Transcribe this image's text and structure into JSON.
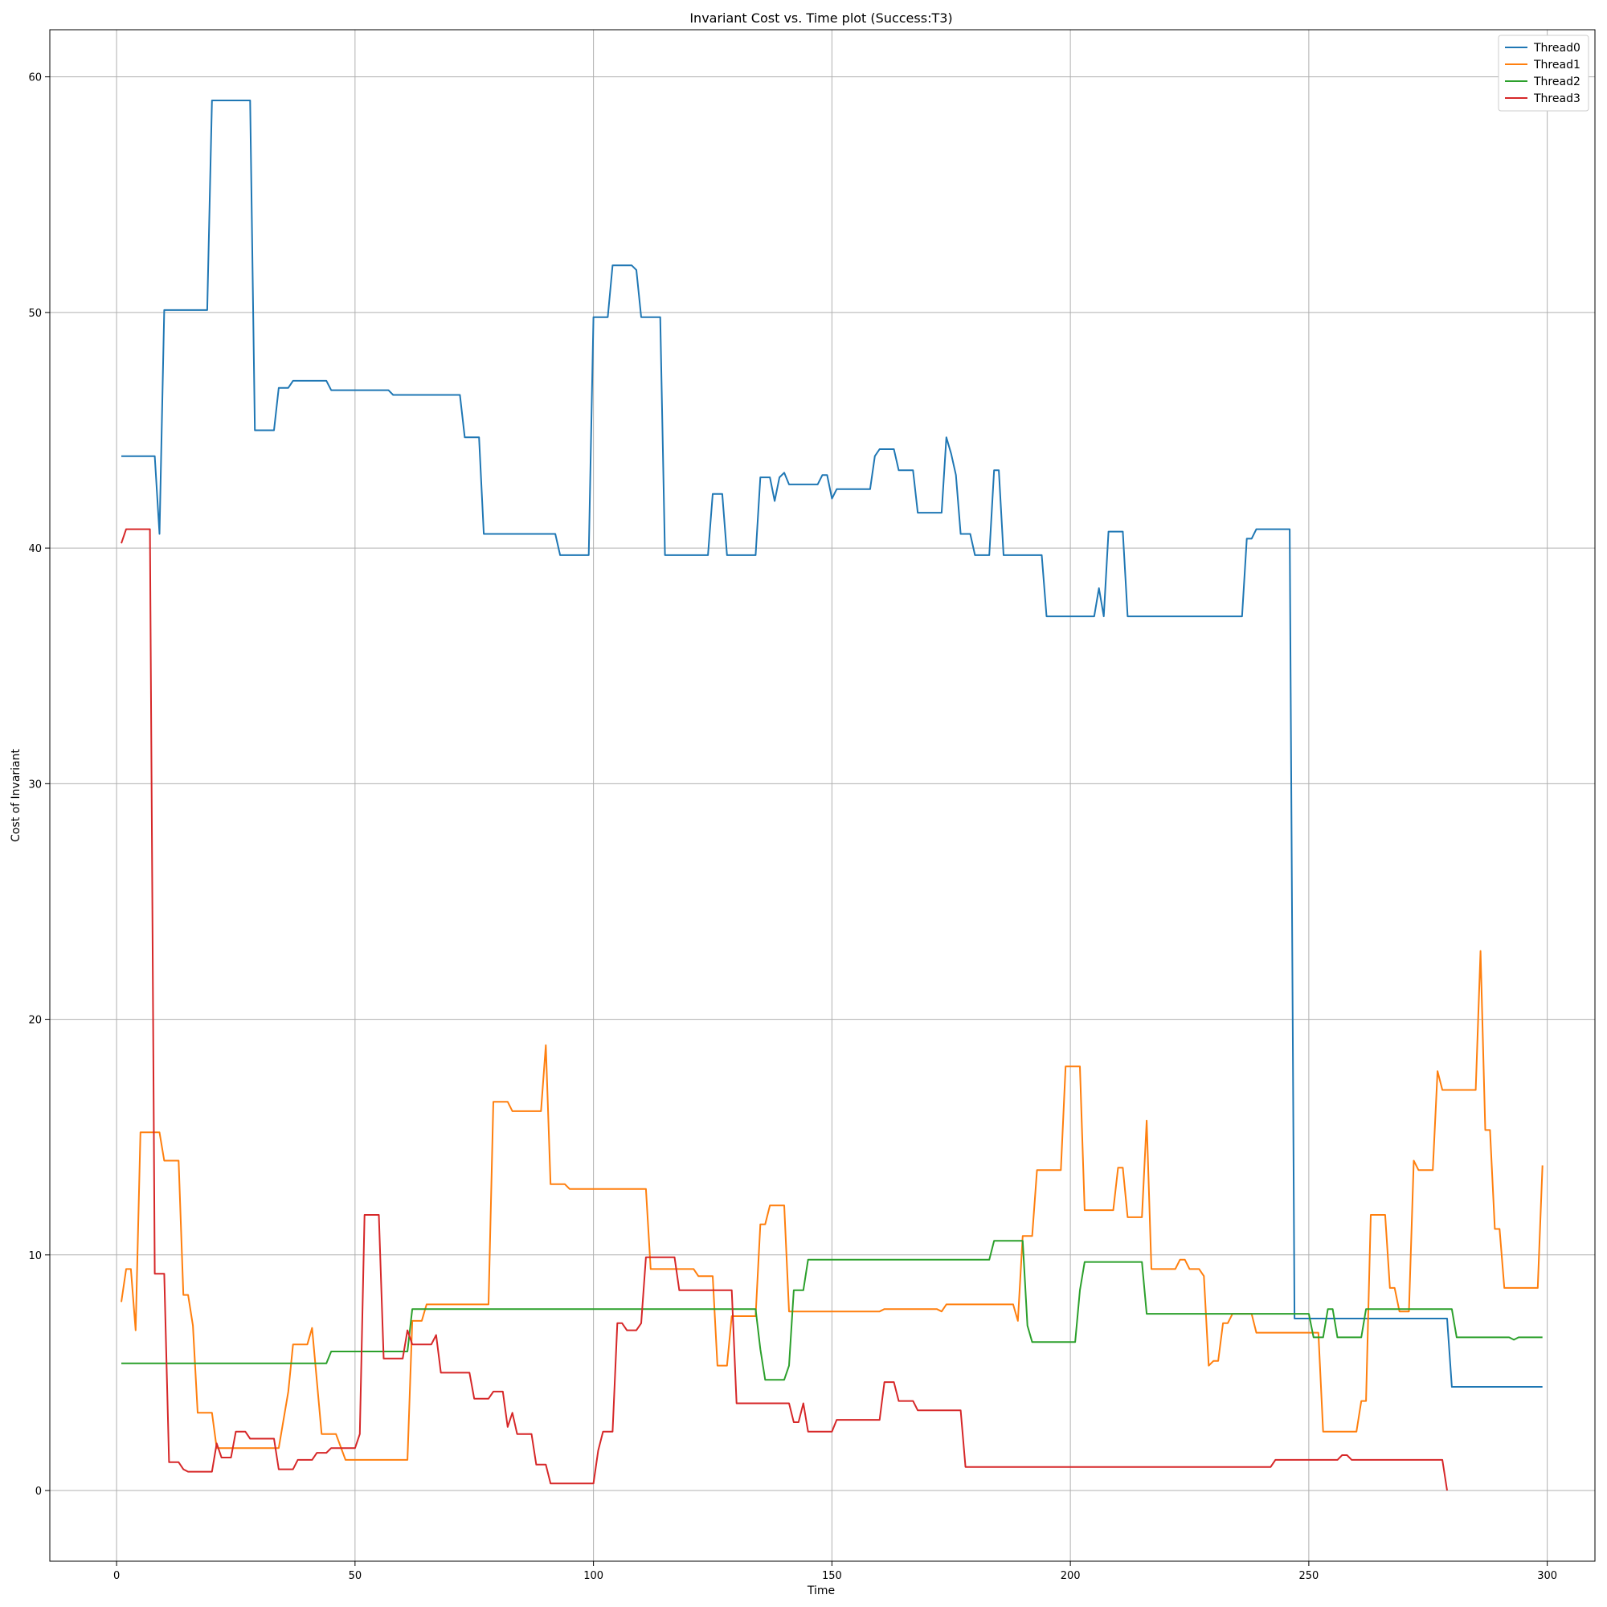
{
  "chart_data": {
    "type": "line",
    "title": "Invariant Cost vs. Time plot (Success:T3)",
    "xlabel": "Time",
    "ylabel": "Cost of Invariant",
    "xlim": [
      -14,
      310
    ],
    "ylim": [
      -3,
      62
    ],
    "xticks": [
      0,
      50,
      100,
      150,
      200,
      250,
      300
    ],
    "yticks": [
      0,
      10,
      20,
      30,
      40,
      50,
      60
    ],
    "grid": true,
    "legend_position": "top-right",
    "series": [
      {
        "name": "Thread0",
        "color": "#1f77b4",
        "points": [
          [
            1,
            43.9
          ],
          [
            8,
            43.9
          ],
          [
            9,
            40.6
          ],
          [
            10,
            50.1
          ],
          [
            19,
            50.1
          ],
          [
            20,
            59.0
          ],
          [
            28,
            59.0
          ],
          [
            29,
            45.0
          ],
          [
            33,
            45.0
          ],
          [
            34,
            46.8
          ],
          [
            36,
            46.8
          ],
          [
            37,
            47.1
          ],
          [
            44,
            47.1
          ],
          [
            45,
            46.7
          ],
          [
            57,
            46.7
          ],
          [
            58,
            46.5
          ],
          [
            72,
            46.5
          ],
          [
            73,
            44.7
          ],
          [
            76,
            44.7
          ],
          [
            77,
            40.6
          ],
          [
            92,
            40.6
          ],
          [
            93,
            39.7
          ],
          [
            99,
            39.7
          ],
          [
            100,
            49.8
          ],
          [
            103,
            49.8
          ],
          [
            104,
            52.0
          ],
          [
            108,
            52.0
          ],
          [
            109,
            51.8
          ],
          [
            110,
            49.8
          ],
          [
            114,
            49.8
          ],
          [
            115,
            39.7
          ],
          [
            124,
            39.7
          ],
          [
            125,
            42.3
          ],
          [
            127,
            42.3
          ],
          [
            128,
            39.7
          ],
          [
            134,
            39.7
          ],
          [
            135,
            43.0
          ],
          [
            137,
            43.0
          ],
          [
            138,
            42.0
          ],
          [
            139,
            43.0
          ],
          [
            140,
            43.2
          ],
          [
            141,
            42.7
          ],
          [
            147,
            42.7
          ],
          [
            148,
            43.1
          ],
          [
            149,
            43.1
          ],
          [
            150,
            42.1
          ],
          [
            151,
            42.5
          ],
          [
            158,
            42.5
          ],
          [
            159,
            43.9
          ],
          [
            160,
            44.2
          ],
          [
            163,
            44.2
          ],
          [
            164,
            43.3
          ],
          [
            167,
            43.3
          ],
          [
            168,
            41.5
          ],
          [
            173,
            41.5
          ],
          [
            174,
            44.7
          ],
          [
            175,
            44.0
          ],
          [
            176,
            43.1
          ],
          [
            177,
            40.6
          ],
          [
            179,
            40.6
          ],
          [
            180,
            39.7
          ],
          [
            183,
            39.7
          ],
          [
            184,
            43.3
          ],
          [
            185,
            43.3
          ],
          [
            186,
            39.7
          ],
          [
            194,
            39.7
          ],
          [
            195,
            37.1
          ],
          [
            205,
            37.1
          ],
          [
            206,
            38.3
          ],
          [
            207,
            37.1
          ],
          [
            208,
            40.7
          ],
          [
            211,
            40.7
          ],
          [
            212,
            37.1
          ],
          [
            236,
            37.1
          ],
          [
            237,
            40.4
          ],
          [
            238,
            40.4
          ],
          [
            239,
            40.8
          ],
          [
            246,
            40.8
          ],
          [
            247,
            7.3
          ],
          [
            279,
            7.3
          ],
          [
            280,
            4.4
          ],
          [
            299,
            4.4
          ]
        ]
      },
      {
        "name": "Thread1",
        "color": "#ff7f0e",
        "points": [
          [
            1,
            8.0
          ],
          [
            2,
            9.4
          ],
          [
            3,
            9.4
          ],
          [
            4,
            6.8
          ],
          [
            5,
            15.2
          ],
          [
            9,
            15.2
          ],
          [
            10,
            14.0
          ],
          [
            13,
            14.0
          ],
          [
            14,
            8.3
          ],
          [
            15,
            8.3
          ],
          [
            16,
            7.0
          ],
          [
            17,
            3.3
          ],
          [
            20,
            3.3
          ],
          [
            21,
            1.8
          ],
          [
            34,
            1.8
          ],
          [
            36,
            4.2
          ],
          [
            37,
            6.2
          ],
          [
            40,
            6.2
          ],
          [
            41,
            6.9
          ],
          [
            43,
            2.4
          ],
          [
            46,
            2.4
          ],
          [
            48,
            1.3
          ],
          [
            61,
            1.3
          ],
          [
            62,
            7.2
          ],
          [
            64,
            7.2
          ],
          [
            65,
            7.9
          ],
          [
            78,
            7.9
          ],
          [
            79,
            16.5
          ],
          [
            82,
            16.5
          ],
          [
            83,
            16.1
          ],
          [
            89,
            16.1
          ],
          [
            90,
            18.9
          ],
          [
            91,
            13.0
          ],
          [
            94,
            13.0
          ],
          [
            95,
            12.8
          ],
          [
            111,
            12.8
          ],
          [
            112,
            9.4
          ],
          [
            121,
            9.4
          ],
          [
            122,
            9.1
          ],
          [
            125,
            9.1
          ],
          [
            126,
            5.3
          ],
          [
            128,
            5.3
          ],
          [
            129,
            7.4
          ],
          [
            134,
            7.4
          ],
          [
            135,
            11.3
          ],
          [
            136,
            11.3
          ],
          [
            137,
            12.1
          ],
          [
            140,
            12.1
          ],
          [
            141,
            7.6
          ],
          [
            160,
            7.6
          ],
          [
            161,
            7.7
          ],
          [
            172,
            7.7
          ],
          [
            173,
            7.6
          ],
          [
            174,
            7.9
          ],
          [
            188,
            7.9
          ],
          [
            189,
            7.2
          ],
          [
            190,
            10.8
          ],
          [
            192,
            10.8
          ],
          [
            193,
            13.6
          ],
          [
            198,
            13.6
          ],
          [
            199,
            18.0
          ],
          [
            202,
            18.0
          ],
          [
            203,
            11.9
          ],
          [
            209,
            11.9
          ],
          [
            210,
            13.7
          ],
          [
            211,
            13.7
          ],
          [
            212,
            11.6
          ],
          [
            215,
            11.6
          ],
          [
            216,
            15.7
          ],
          [
            217,
            9.4
          ],
          [
            222,
            9.4
          ],
          [
            223,
            9.8
          ],
          [
            224,
            9.8
          ],
          [
            225,
            9.4
          ],
          [
            227,
            9.4
          ],
          [
            228,
            9.1
          ],
          [
            229,
            5.3
          ],
          [
            230,
            5.5
          ],
          [
            231,
            5.5
          ],
          [
            232,
            7.1
          ],
          [
            233,
            7.1
          ],
          [
            234,
            7.5
          ],
          [
            238,
            7.5
          ],
          [
            239,
            6.7
          ],
          [
            252,
            6.7
          ],
          [
            253,
            2.5
          ],
          [
            260,
            2.5
          ],
          [
            261,
            3.8
          ],
          [
            262,
            3.8
          ],
          [
            263,
            11.7
          ],
          [
            266,
            11.7
          ],
          [
            267,
            8.6
          ],
          [
            268,
            8.6
          ],
          [
            269,
            7.6
          ],
          [
            271,
            7.6
          ],
          [
            272,
            14.0
          ],
          [
            273,
            13.6
          ],
          [
            276,
            13.6
          ],
          [
            277,
            17.8
          ],
          [
            278,
            17.0
          ],
          [
            285,
            17.0
          ],
          [
            286,
            22.9
          ],
          [
            287,
            15.3
          ],
          [
            288,
            15.3
          ],
          [
            289,
            11.1
          ],
          [
            290,
            11.1
          ],
          [
            291,
            8.6
          ],
          [
            298,
            8.6
          ],
          [
            299,
            13.8
          ]
        ]
      },
      {
        "name": "Thread2",
        "color": "#2ca02c",
        "points": [
          [
            1,
            5.4
          ],
          [
            44,
            5.4
          ],
          [
            45,
            5.9
          ],
          [
            61,
            5.9
          ],
          [
            62,
            7.7
          ],
          [
            134,
            7.7
          ],
          [
            135,
            6.0
          ],
          [
            136,
            4.7
          ],
          [
            140,
            4.7
          ],
          [
            141,
            5.3
          ],
          [
            142,
            8.5
          ],
          [
            144,
            8.5
          ],
          [
            145,
            9.8
          ],
          [
            183,
            9.8
          ],
          [
            184,
            10.6
          ],
          [
            190,
            10.6
          ],
          [
            191,
            7.0
          ],
          [
            192,
            6.3
          ],
          [
            201,
            6.3
          ],
          [
            202,
            8.5
          ],
          [
            203,
            9.7
          ],
          [
            215,
            9.7
          ],
          [
            216,
            7.5
          ],
          [
            250,
            7.5
          ],
          [
            251,
            6.5
          ],
          [
            253,
            6.5
          ],
          [
            254,
            7.7
          ],
          [
            255,
            7.7
          ],
          [
            256,
            6.5
          ],
          [
            261,
            6.5
          ],
          [
            262,
            7.7
          ],
          [
            280,
            7.7
          ],
          [
            281,
            6.5
          ],
          [
            292,
            6.5
          ],
          [
            293,
            6.4
          ],
          [
            294,
            6.5
          ],
          [
            299,
            6.5
          ]
        ]
      },
      {
        "name": "Thread3",
        "color": "#d62728",
        "points": [
          [
            1,
            40.2
          ],
          [
            2,
            40.8
          ],
          [
            7,
            40.8
          ],
          [
            8,
            9.2
          ],
          [
            10,
            9.2
          ],
          [
            11,
            1.2
          ],
          [
            13,
            1.2
          ],
          [
            14,
            0.9
          ],
          [
            15,
            0.8
          ],
          [
            20,
            0.8
          ],
          [
            21,
            2.0
          ],
          [
            22,
            1.4
          ],
          [
            24,
            1.4
          ],
          [
            25,
            2.5
          ],
          [
            27,
            2.5
          ],
          [
            28,
            2.2
          ],
          [
            33,
            2.2
          ],
          [
            34,
            0.9
          ],
          [
            37,
            0.9
          ],
          [
            38,
            1.3
          ],
          [
            41,
            1.3
          ],
          [
            42,
            1.6
          ],
          [
            44,
            1.6
          ],
          [
            45,
            1.8
          ],
          [
            50,
            1.8
          ],
          [
            51,
            2.4
          ],
          [
            52,
            11.7
          ],
          [
            55,
            11.7
          ],
          [
            56,
            5.6
          ],
          [
            60,
            5.6
          ],
          [
            61,
            6.8
          ],
          [
            62,
            6.2
          ],
          [
            66,
            6.2
          ],
          [
            67,
            6.6
          ],
          [
            68,
            5.0
          ],
          [
            74,
            5.0
          ],
          [
            75,
            3.9
          ],
          [
            78,
            3.9
          ],
          [
            79,
            4.2
          ],
          [
            81,
            4.2
          ],
          [
            82,
            2.7
          ],
          [
            83,
            3.3
          ],
          [
            84,
            2.4
          ],
          [
            87,
            2.4
          ],
          [
            88,
            1.1
          ],
          [
            90,
            1.1
          ],
          [
            91,
            0.3
          ],
          [
            100,
            0.3
          ],
          [
            101,
            1.7
          ],
          [
            102,
            2.5
          ],
          [
            104,
            2.5
          ],
          [
            105,
            7.1
          ],
          [
            106,
            7.1
          ],
          [
            107,
            6.8
          ],
          [
            109,
            6.8
          ],
          [
            110,
            7.1
          ],
          [
            111,
            9.9
          ],
          [
            117,
            9.9
          ],
          [
            118,
            8.5
          ],
          [
            129,
            8.5
          ],
          [
            130,
            3.7
          ],
          [
            141,
            3.7
          ],
          [
            142,
            2.9
          ],
          [
            143,
            2.9
          ],
          [
            144,
            3.7
          ],
          [
            145,
            2.5
          ],
          [
            150,
            2.5
          ],
          [
            151,
            3.0
          ],
          [
            160,
            3.0
          ],
          [
            161,
            4.6
          ],
          [
            163,
            4.6
          ],
          [
            164,
            3.8
          ],
          [
            167,
            3.8
          ],
          [
            168,
            3.4
          ],
          [
            177,
            3.4
          ],
          [
            178,
            1.0
          ],
          [
            242,
            1.0
          ],
          [
            243,
            1.3
          ],
          [
            256,
            1.3
          ],
          [
            257,
            1.5
          ],
          [
            258,
            1.5
          ],
          [
            259,
            1.3
          ],
          [
            278,
            1.3
          ],
          [
            279,
            0.0
          ]
        ]
      }
    ]
  }
}
